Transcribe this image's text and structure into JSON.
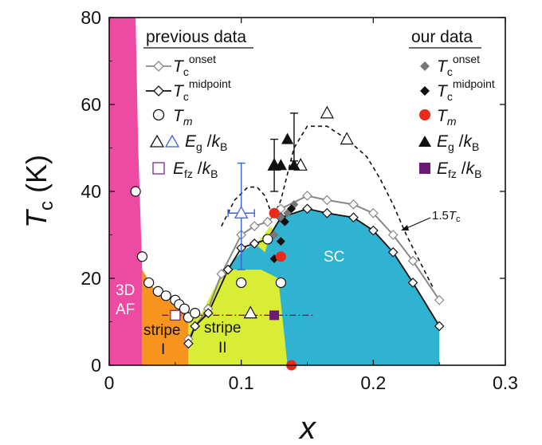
{
  "chart_data": {
    "type": "scatter",
    "xlabel": "x",
    "ylabel": "Tc (K)",
    "xlim": [
      0,
      0.3
    ],
    "ylim": [
      0,
      80
    ],
    "x_ticks": [
      "0",
      "0.1",
      "0.2",
      "0.3"
    ],
    "y_ticks": [
      "0",
      "20",
      "40",
      "60",
      "80"
    ],
    "legend_groups": {
      "previous": "previous data",
      "ours": "our data"
    },
    "legend_text": {
      "T": "T",
      "sub_c": "c",
      "onset": "onset",
      "midpoint": "midpoint",
      "Tm_sym": "T",
      "Tm_sub": "m",
      "Eg_sym": "E",
      "Eg_sub": "g",
      "Efz_sym": "E",
      "Efz_sub": "fz",
      "over": " /",
      "kB_sym": "k",
      "kB_sub": "B"
    },
    "region_labels": {
      "af1": "3D",
      "af2": "AF",
      "stripe1_a": "stripe",
      "stripe1_b": "I",
      "stripe2_a": "stripe",
      "stripe2_b": "II",
      "sc": "SC"
    },
    "annotation": {
      "pre": "1.5",
      "sym": "T",
      "sub": "c"
    },
    "colors": {
      "af": "#ec4ba1",
      "stripe1": "#f7941d",
      "stripe2": "#d9ec36",
      "sc": "#2fb3d1",
      "prev_onset": "#888888",
      "our_red": "#e8291c",
      "our_purple": "#6d1a74",
      "prev_blue": "#3a63d6",
      "prev_purple": "#7a2a8a"
    },
    "series": [
      {
        "name": "previous Tc onset",
        "marker": "diamond-open",
        "line": "gray",
        "points": [
          [
            0.06,
            6
          ],
          [
            0.065,
            9
          ],
          [
            0.075,
            13
          ],
          [
            0.085,
            21
          ],
          [
            0.1,
            30
          ],
          [
            0.11,
            32
          ],
          [
            0.12,
            33
          ],
          [
            0.13,
            36
          ],
          [
            0.15,
            39
          ],
          [
            0.165,
            38
          ],
          [
            0.185,
            37
          ],
          [
            0.2,
            35
          ],
          [
            0.215,
            30
          ],
          [
            0.23,
            24
          ],
          [
            0.25,
            15
          ]
        ]
      },
      {
        "name": "previous Tc midpoint",
        "marker": "diamond-open",
        "line": "black",
        "points": [
          [
            0.06,
            5
          ],
          [
            0.065,
            9
          ],
          [
            0.075,
            12
          ],
          [
            0.09,
            22
          ],
          [
            0.1,
            27
          ],
          [
            0.11,
            28
          ],
          [
            0.12,
            29
          ],
          [
            0.13,
            34
          ],
          [
            0.15,
            36
          ],
          [
            0.165,
            35
          ],
          [
            0.185,
            34
          ],
          [
            0.2,
            31
          ],
          [
            0.215,
            26
          ],
          [
            0.23,
            19
          ],
          [
            0.25,
            9
          ]
        ]
      },
      {
        "name": "previous Tm",
        "marker": "circle-open",
        "points": [
          [
            0.02,
            40
          ],
          [
            0.025,
            25
          ],
          [
            0.03,
            19
          ],
          [
            0.037,
            17
          ],
          [
            0.043,
            16
          ],
          [
            0.05,
            15
          ],
          [
            0.053,
            14
          ],
          [
            0.057,
            13
          ],
          [
            0.06,
            11
          ],
          [
            0.065,
            12
          ],
          [
            0.1,
            19
          ],
          [
            0.12,
            29
          ],
          [
            0.13,
            19
          ]
        ]
      },
      {
        "name": "previous Eg/kB",
        "marker": "triangle-open",
        "points": [
          [
            0.107,
            12
          ],
          [
            0.125,
            46
          ],
          [
            0.145,
            46
          ],
          [
            0.165,
            58
          ],
          [
            0.18,
            52
          ]
        ]
      },
      {
        "name": "previous Eg/kB (blue)",
        "marker": "triangle-open-blue",
        "points": [
          [
            0.1,
            35
          ]
        ],
        "yerr": [
          [
            0.1,
            22,
            46.5
          ]
        ],
        "xerr": [
          [
            0.09,
            0.11,
            35
          ]
        ]
      },
      {
        "name": "previous Efz/kB",
        "marker": "square-open",
        "points": [
          [
            0.05,
            11.5
          ]
        ]
      },
      {
        "name": "our Tc onset",
        "marker": "diamond-gray",
        "points": [
          [
            0.125,
            30
          ],
          [
            0.13,
            34
          ],
          [
            0.135,
            35
          ],
          [
            0.14,
            37
          ]
        ]
      },
      {
        "name": "our Tc midpoint",
        "marker": "diamond-black",
        "points": [
          [
            0.125,
            24.5
          ],
          [
            0.13,
            28.5
          ],
          [
            0.133,
            33
          ],
          [
            0.138,
            36
          ]
        ]
      },
      {
        "name": "our Tm",
        "marker": "circle-red",
        "points": [
          [
            0.125,
            35
          ],
          [
            0.13,
            25
          ],
          [
            0.138,
            0
          ]
        ]
      },
      {
        "name": "our Eg/kB",
        "marker": "triangle-black",
        "points": [
          [
            0.125,
            46
          ],
          [
            0.13,
            46
          ],
          [
            0.135,
            52
          ],
          [
            0.14,
            46
          ]
        ],
        "yerr": [
          [
            0.125,
            40,
            52
          ],
          [
            0.14,
            47,
            58
          ]
        ]
      },
      {
        "name": "our Efz/kB",
        "marker": "square-purple",
        "points": [
          [
            0.125,
            11.5
          ]
        ]
      }
    ],
    "dashed_curve": [
      [
        0.085,
        32
      ],
      [
        0.095,
        38
      ],
      [
        0.105,
        41
      ],
      [
        0.112,
        41
      ],
      [
        0.118,
        39
      ],
      [
        0.124,
        34
      ],
      [
        0.13,
        38
      ],
      [
        0.14,
        50
      ],
      [
        0.15,
        55
      ],
      [
        0.165,
        55
      ],
      [
        0.18,
        52
      ],
      [
        0.195,
        48
      ],
      [
        0.205,
        43
      ],
      [
        0.215,
        37
      ],
      [
        0.225,
        30
      ],
      [
        0.235,
        24
      ],
      [
        0.245,
        18
      ]
    ],
    "dash_dot_line": [
      [
        0.04,
        11.5
      ],
      [
        0.155,
        11.5
      ]
    ],
    "regions": {
      "af": [
        [
          0.015,
          80
        ],
        [
          0.02,
          80
        ],
        [
          0.022,
          50
        ],
        [
          0.025,
          22
        ],
        [
          0.025,
          0
        ],
        [
          0,
          0
        ],
        [
          0,
          80
        ]
      ],
      "stripe1": [
        [
          0.025,
          22
        ],
        [
          0.035,
          17
        ],
        [
          0.05,
          14
        ],
        [
          0.06,
          11
        ],
        [
          0.06,
          0
        ],
        [
          0.025,
          0
        ]
      ],
      "stripe2": [
        [
          0.06,
          0
        ],
        [
          0.06,
          11
        ],
        [
          0.07,
          12
        ],
        [
          0.085,
          21
        ],
        [
          0.1,
          26
        ],
        [
          0.112,
          28
        ],
        [
          0.122,
          32
        ],
        [
          0.128,
          30
        ],
        [
          0.135,
          0
        ]
      ],
      "sc": [
        [
          0.088,
          22
        ],
        [
          0.1,
          26
        ],
        [
          0.11,
          28
        ],
        [
          0.118,
          26
        ],
        [
          0.122,
          30
        ],
        [
          0.13,
          34
        ],
        [
          0.15,
          36
        ],
        [
          0.165,
          35
        ],
        [
          0.185,
          34
        ],
        [
          0.2,
          31
        ],
        [
          0.215,
          26
        ],
        [
          0.23,
          19
        ],
        [
          0.25,
          9
        ],
        [
          0.25,
          0
        ],
        [
          0.135,
          0
        ],
        [
          0.128,
          20
        ],
        [
          0.115,
          22
        ]
      ]
    }
  }
}
